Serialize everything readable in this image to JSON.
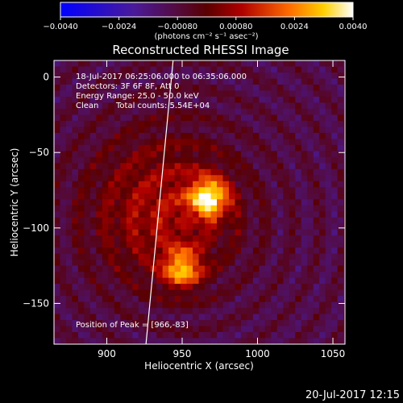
{
  "chart_data": {
    "type": "heatmap",
    "title": "Reconstructed RHESSI Image",
    "xlabel": "Heliocentric X (arcsec)",
    "ylabel": "Heliocentric Y (arcsec)",
    "xlim": [
      865,
      1058
    ],
    "ylim": [
      -177,
      11
    ],
    "xticks": [
      900,
      950,
      1000,
      1050
    ],
    "yticks": [
      0,
      -50,
      -100,
      -150
    ],
    "xtick_labels": [
      "900",
      "950",
      "1000",
      "1050"
    ],
    "ytick_labels": [
      "0",
      "−50",
      "−100",
      "−150"
    ],
    "colorbar": {
      "range": [
        -0.004,
        0.004
      ],
      "ticks": [
        -0.004,
        -0.0024,
        -0.0008,
        0.0008,
        0.0024,
        0.004
      ],
      "tick_labels": [
        "−0.0040",
        "−0.0024",
        "−0.00080",
        "0.00080",
        "0.0024",
        "0.0040"
      ],
      "units_text": "(photons cm⁻² s⁻¹ asec⁻²)",
      "colormap": "blue-purple-red-orange-yellow-white"
    },
    "annotations": {
      "time_range": "18-Jul-2017 06:25:06.000 to 06:35:06.000",
      "detectors": "Detectors: 3F 6F 8F, Att 0",
      "energy": "Energy Range: 25.0 - 50.0 keV",
      "clean": "Clean",
      "total_counts": "Total counts: 5.54E+04",
      "peak": "Position of Peak = [966,-83]"
    },
    "peak_position": [
      966,
      -83
    ],
    "sources": [
      {
        "x": 966,
        "y": -78,
        "sigma": 9,
        "peak": 0.004
      },
      {
        "x": 948,
        "y": -125,
        "sigma": 9,
        "peak": 0.0032
      },
      {
        "x": 935,
        "y": -85,
        "sigma": 36,
        "peak": 0.0018
      }
    ],
    "limb_line": [
      {
        "x": 944,
        "y": 11
      },
      {
        "x": 926,
        "y": -177
      }
    ]
  },
  "footer_timestamp": "20-Jul-2017 12:15"
}
